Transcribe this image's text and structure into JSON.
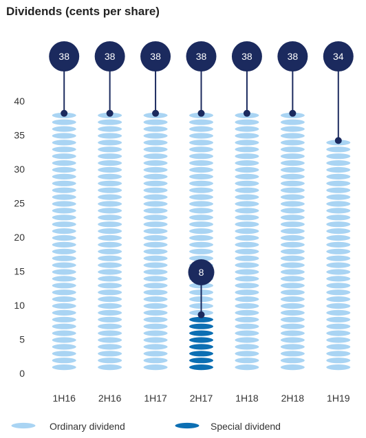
{
  "chart_data": {
    "type": "bar",
    "title": "Dividends (cents per share)",
    "xlabel": "",
    "ylabel": "",
    "categories": [
      "1H16",
      "2H16",
      "1H17",
      "2H17",
      "1H18",
      "2H18",
      "1H19"
    ],
    "series": [
      {
        "name": "Ordinary dividend",
        "values": [
          38,
          38,
          38,
          38,
          38,
          38,
          34
        ]
      },
      {
        "name": "Special dividend",
        "values": [
          0,
          0,
          0,
          8,
          0,
          0,
          0
        ]
      }
    ],
    "data_labels": [
      {
        "category": "1H16",
        "label": "38"
      },
      {
        "category": "2H16",
        "label": "38"
      },
      {
        "category": "1H17",
        "label": "38"
      },
      {
        "category": "2H17",
        "label": "38"
      },
      {
        "category": "1H18",
        "label": "38"
      },
      {
        "category": "2H18",
        "label": "38"
      },
      {
        "category": "1H19",
        "label": "34"
      },
      {
        "category": "2H17",
        "label": "8",
        "series": "Special dividend"
      }
    ],
    "ylim": [
      0,
      40
    ],
    "yticks": [
      0,
      5,
      10,
      15,
      20,
      25,
      30,
      35,
      40
    ],
    "grid": false,
    "legend_position": "bottom-left",
    "colors": {
      "ordinary": "#a9d4f3",
      "ordinary_edge": "#ffffff",
      "special": "#0c6fb3",
      "special_edge": "#ffffff",
      "label_circle": "#1b2a5e",
      "label_text": "#ffffff",
      "axis_text": "#333333"
    }
  }
}
